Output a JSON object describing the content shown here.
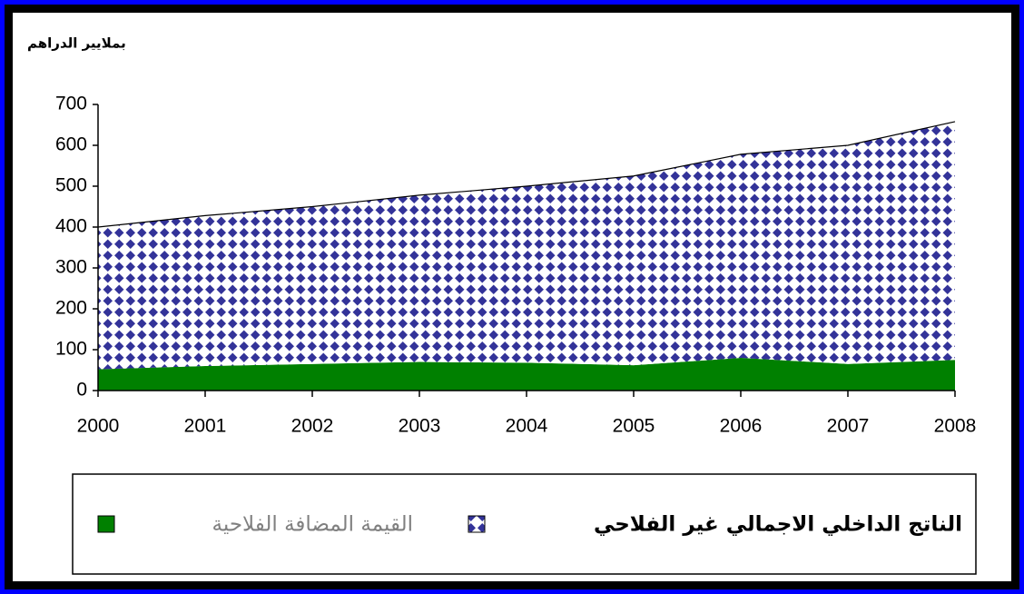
{
  "chart_data": {
    "type": "stacked_area",
    "y_axis_label": "بملايير الدراهم",
    "categories": [
      "2000",
      "2001",
      "2002",
      "2003",
      "2004",
      "2005",
      "2006",
      "2007",
      "2008"
    ],
    "series": [
      {
        "name": "القيمة المضافة الفلاحية",
        "color": "#008000",
        "values": [
          52,
          60,
          65,
          70,
          68,
          62,
          80,
          65,
          75
        ]
      },
      {
        "name": "الناتج الداخلي الاجمالي غير الفلاحي",
        "color": "#333399",
        "pattern": "diamonds",
        "values": [
          348,
          368,
          385,
          408,
          432,
          463,
          498,
          535,
          583
        ]
      }
    ],
    "ylim": [
      0,
      700
    ],
    "yticks": [
      0,
      100,
      200,
      300,
      400,
      500,
      600,
      700
    ]
  }
}
